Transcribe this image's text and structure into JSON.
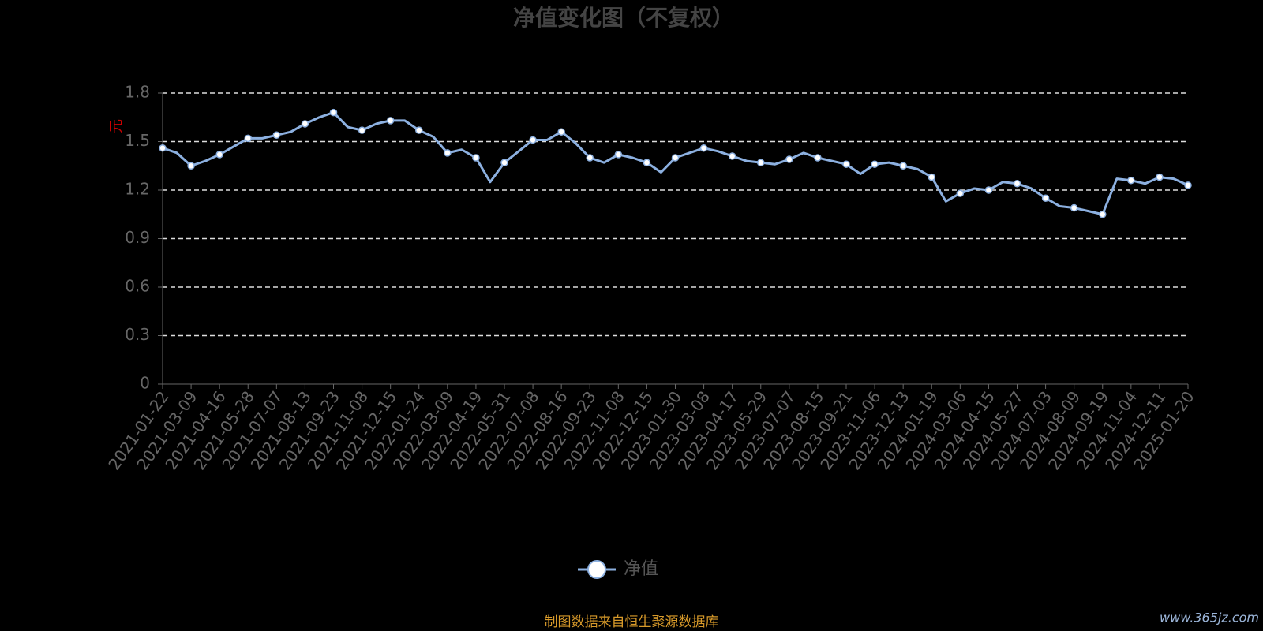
{
  "chart_data": {
    "type": "line",
    "title": "净值变化图（不复权）",
    "y_label": "元",
    "footer": "制图数据来自恒生聚源数据库",
    "watermark": "www.365jz.com",
    "categories": [
      "2021-01-22",
      null,
      "2021-03-09",
      null,
      "2021-04-16",
      null,
      "2021-05-28",
      null,
      "2021-07-07",
      null,
      "2021-08-13",
      null,
      "2021-09-23",
      null,
      "2021-11-08",
      null,
      "2021-12-15",
      null,
      "2022-01-24",
      null,
      "2022-03-09",
      null,
      "2022-04-19",
      null,
      "2022-05-31",
      null,
      "2022-07-08",
      null,
      "2022-08-16",
      null,
      "2022-09-23",
      null,
      "2022-11-08",
      null,
      "2022-12-15",
      null,
      "2023-01-30",
      null,
      "2023-03-08",
      null,
      "2023-04-17",
      null,
      "2023-05-29",
      null,
      "2023-07-07",
      null,
      "2023-08-15",
      null,
      "2023-09-21",
      null,
      "2023-11-06",
      null,
      "2023-12-13",
      null,
      "2024-01-19",
      null,
      "2024-03-06",
      null,
      "2024-04-15",
      null,
      "2024-05-27",
      null,
      "2024-07-03",
      null,
      "2024-08-09",
      null,
      "2024-09-19",
      null,
      "2024-11-04",
      null,
      "2024-12-11",
      null,
      "2025-01-20"
    ],
    "series": [
      {
        "name": "净值",
        "color": "#8cb0e0",
        "values": [
          1.46,
          1.43,
          1.35,
          1.38,
          1.42,
          1.47,
          1.52,
          1.52,
          1.54,
          1.56,
          1.61,
          1.65,
          1.68,
          1.59,
          1.57,
          1.61,
          1.63,
          1.63,
          1.57,
          1.53,
          1.43,
          1.45,
          1.4,
          1.25,
          1.37,
          1.44,
          1.51,
          1.51,
          1.56,
          1.49,
          1.4,
          1.37,
          1.42,
          1.4,
          1.37,
          1.31,
          1.4,
          1.43,
          1.46,
          1.44,
          1.41,
          1.38,
          1.37,
          1.36,
          1.39,
          1.43,
          1.4,
          1.38,
          1.36,
          1.3,
          1.36,
          1.37,
          1.35,
          1.33,
          1.28,
          1.13,
          1.18,
          1.21,
          1.2,
          1.25,
          1.24,
          1.21,
          1.15,
          1.1,
          1.09,
          1.07,
          1.05,
          1.27,
          1.26,
          1.24,
          1.28,
          1.27,
          1.23
        ]
      }
    ],
    "ylim": [
      0,
      1.8
    ],
    "yticks": [
      0,
      0.3,
      0.6,
      0.9,
      1.2,
      1.5,
      1.8
    ],
    "grid": true
  }
}
